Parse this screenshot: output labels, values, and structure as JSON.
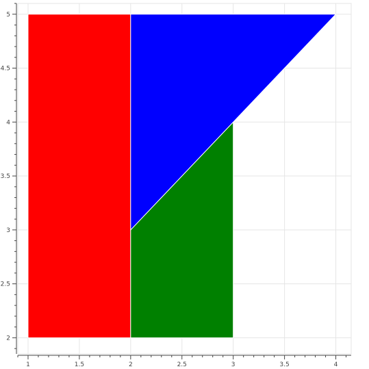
{
  "chart_data": {
    "type": "area",
    "title": "",
    "xlabel": "",
    "ylabel": "",
    "xlim": [
      0.9,
      4.15
    ],
    "ylim": [
      1.85,
      5.1
    ],
    "grid": true,
    "x_ticks": [
      1,
      1.5,
      2,
      2.5,
      3,
      3.5,
      4
    ],
    "x_tick_labels": [
      "1",
      "1.5",
      "2",
      "2.5",
      "3",
      "3.5",
      "4"
    ],
    "y_ticks": [
      2,
      2.5,
      3,
      3.5,
      4,
      4.5,
      5
    ],
    "y_tick_labels": [
      "2",
      "2.5",
      "3",
      "3.5",
      "4",
      "4.5",
      "5"
    ],
    "series": [
      {
        "color": "#ff0000",
        "points": [
          [
            1,
            2
          ],
          [
            2,
            2
          ],
          [
            2,
            5
          ],
          [
            1,
            5
          ]
        ]
      },
      {
        "color": "#008000",
        "points": [
          [
            2,
            2
          ],
          [
            3,
            2
          ],
          [
            3,
            4
          ],
          [
            2,
            3
          ]
        ]
      },
      {
        "color": "#0000ff",
        "points": [
          [
            2,
            3
          ],
          [
            4,
            5
          ],
          [
            2,
            5
          ]
        ]
      }
    ]
  }
}
